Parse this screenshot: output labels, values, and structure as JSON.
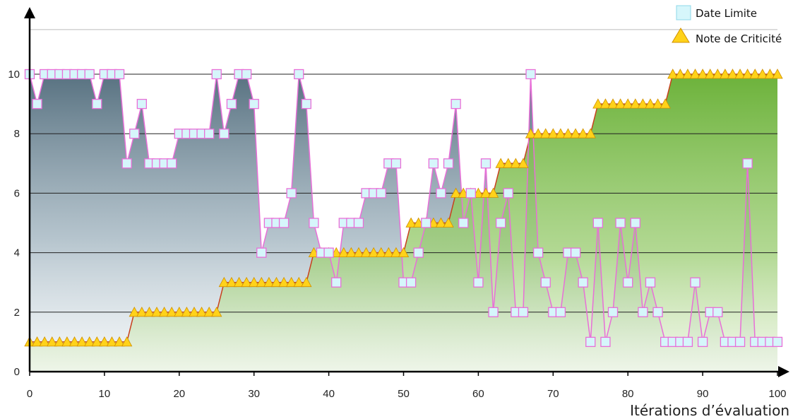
{
  "chart_data": {
    "type": "line",
    "title": "",
    "xlabel": "Itérations d’évaluation",
    "ylabel": "",
    "xlim": [
      0,
      100
    ],
    "ylim": [
      0,
      11.5
    ],
    "xticks": [
      0,
      10,
      20,
      30,
      40,
      50,
      60,
      70,
      80,
      90,
      100
    ],
    "yticks": [
      0,
      2,
      4,
      6,
      8,
      10
    ],
    "grid": true,
    "legend": "top-right",
    "series": [
      {
        "name": "Date Limite",
        "marker": "square",
        "color": "#e86fd8",
        "marker_fill": "#d6f6fb",
        "area_color": "#4f6a7a",
        "x": [
          0,
          1,
          2,
          3,
          4,
          5,
          6,
          7,
          8,
          9,
          10,
          11,
          12,
          13,
          14,
          15,
          16,
          17,
          18,
          19,
          20,
          21,
          22,
          23,
          24,
          25,
          26,
          27,
          28,
          29,
          30,
          31,
          32,
          33,
          34,
          35,
          36,
          37,
          38,
          39,
          40,
          41,
          42,
          43,
          44,
          45,
          46,
          47,
          48,
          49,
          50,
          51,
          52,
          53,
          54,
          55,
          56,
          57,
          58,
          59,
          60,
          61,
          62,
          63,
          64,
          65,
          66,
          67,
          68,
          69,
          70,
          71,
          72,
          73,
          74,
          75,
          76,
          77,
          78,
          79,
          80,
          81,
          82,
          83,
          84,
          85,
          86,
          87,
          88,
          89,
          90,
          91,
          92,
          93,
          94,
          95,
          96,
          97,
          98,
          99,
          100
        ],
        "values": [
          10,
          9,
          10,
          10,
          10,
          10,
          10,
          10,
          10,
          9,
          10,
          10,
          10,
          7,
          8,
          9,
          7,
          7,
          7,
          7,
          8,
          8,
          8,
          8,
          8,
          10,
          8,
          9,
          10,
          10,
          9,
          4,
          5,
          5,
          5,
          6,
          10,
          9,
          5,
          4,
          4,
          3,
          5,
          5,
          5,
          6,
          6,
          6,
          7,
          7,
          3,
          3,
          4,
          5,
          7,
          6,
          7,
          9,
          5,
          6,
          3,
          7,
          2,
          5,
          6,
          2,
          2,
          10,
          4,
          3,
          2,
          2,
          4,
          4,
          3,
          1,
          5,
          1,
          2,
          5,
          3,
          5,
          2,
          3,
          2,
          1,
          1,
          1,
          1,
          3,
          1,
          2,
          2,
          1,
          1,
          1,
          7,
          1,
          1,
          1,
          1
        ]
      },
      {
        "name": "Note de Criticité",
        "marker": "triangle",
        "color": "#c8401c",
        "marker_fill": "#ffd21a",
        "area_color": "#6cb23a",
        "x": [
          0,
          1,
          2,
          3,
          4,
          5,
          6,
          7,
          8,
          9,
          10,
          11,
          12,
          13,
          14,
          15,
          16,
          17,
          18,
          19,
          20,
          21,
          22,
          23,
          24,
          25,
          26,
          27,
          28,
          29,
          30,
          31,
          32,
          33,
          34,
          35,
          36,
          37,
          38,
          39,
          40,
          41,
          42,
          43,
          44,
          45,
          46,
          47,
          48,
          49,
          50,
          51,
          52,
          53,
          54,
          55,
          56,
          57,
          58,
          59,
          60,
          61,
          62,
          63,
          64,
          65,
          66,
          67,
          68,
          69,
          70,
          71,
          72,
          73,
          74,
          75,
          76,
          77,
          78,
          79,
          80,
          81,
          82,
          83,
          84,
          85,
          86,
          87,
          88,
          89,
          90,
          91,
          92,
          93,
          94,
          95,
          96,
          97,
          98,
          99,
          100
        ],
        "values": [
          1,
          1,
          1,
          1,
          1,
          1,
          1,
          1,
          1,
          1,
          1,
          1,
          1,
          1,
          2,
          2,
          2,
          2,
          2,
          2,
          2,
          2,
          2,
          2,
          2,
          2,
          3,
          3,
          3,
          3,
          3,
          3,
          3,
          3,
          3,
          3,
          3,
          3,
          4,
          4,
          4,
          4,
          4,
          4,
          4,
          4,
          4,
          4,
          4,
          4,
          4,
          5,
          5,
          5,
          5,
          5,
          5,
          6,
          6,
          6,
          6,
          6,
          6,
          7,
          7,
          7,
          7,
          8,
          8,
          8,
          8,
          8,
          8,
          8,
          8,
          8,
          9,
          9,
          9,
          9,
          9,
          9,
          9,
          9,
          9,
          9,
          10,
          10,
          10,
          10,
          10,
          10,
          10,
          10,
          10,
          10,
          10,
          10,
          10,
          10,
          10
        ]
      }
    ]
  }
}
